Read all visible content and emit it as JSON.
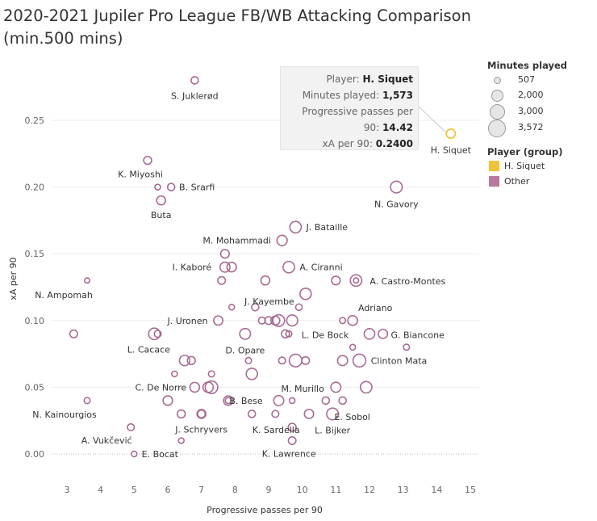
{
  "title_line1": "2020-2021 Jupiler Pro League FB/WB Attacking Comparison",
  "title_line2": "(min.500 mins)",
  "legend": {
    "size_title": "Minutes played",
    "sizes": [
      {
        "label": "507",
        "value": 507
      },
      {
        "label": "2,000",
        "value": 2000
      },
      {
        "label": "3,000",
        "value": 3000
      },
      {
        "label": "3,572",
        "value": 3572
      }
    ],
    "color_title": "Player (group)",
    "groups": [
      {
        "label": "H. Siquet",
        "color": "#f0c33a"
      },
      {
        "label": "Other",
        "color": "#b9799d"
      }
    ]
  },
  "tooltip": {
    "player_label": "Player:",
    "player_value": "H. Siquet",
    "minutes_label": "Minutes played:",
    "minutes_value": "1,573",
    "prog_label_1": "Progressive passes per",
    "prog_label_2": "90:",
    "prog_value": "14.42",
    "xa_label": "xA per 90:",
    "xa_value": "0.2400"
  },
  "colors": {
    "other": "#a86b94",
    "highlight": "#f0c33a",
    "grid": "#cccccc"
  },
  "chart_data": {
    "type": "scatter",
    "title": "2020-2021 Jupiler Pro League FB/WB Attacking Comparison (min.500 mins)",
    "xlabel": "Progressive passes per 90",
    "ylabel": "xA per 90",
    "xlim": [
      2.6,
      15.2
    ],
    "ylim": [
      -0.005,
      0.29
    ],
    "xticks": [
      3,
      4,
      5,
      6,
      7,
      8,
      9,
      10,
      11,
      12,
      13,
      14,
      15
    ],
    "yticks": [
      0.0,
      0.05,
      0.1,
      0.15,
      0.2,
      0.25
    ],
    "ytick_labels": [
      "0.00",
      "0.05",
      "0.10",
      "0.15",
      "0.20",
      "0.25"
    ],
    "points": [
      {
        "name": "H. Siquet",
        "x": 14.42,
        "y": 0.24,
        "minutes": 1573,
        "group": "H. Siquet",
        "label": "H. Siquet"
      },
      {
        "name": "S. Juklerød",
        "x": 6.8,
        "y": 0.28,
        "minutes": 1000,
        "group": "Other",
        "label": "S. Juklerød"
      },
      {
        "name": "K. Miyoshi",
        "x": 5.4,
        "y": 0.22,
        "minutes": 1200,
        "group": "Other",
        "label": "K. Miyoshi"
      },
      {
        "name": "B. Srarfi",
        "x": 6.1,
        "y": 0.2,
        "minutes": 1000,
        "group": "Other",
        "label": "B. Srarfi"
      },
      {
        "name": "",
        "x": 5.7,
        "y": 0.2,
        "minutes": 600,
        "group": "Other",
        "label": ""
      },
      {
        "name": "Buta",
        "x": 5.8,
        "y": 0.19,
        "minutes": 1500,
        "group": "Other",
        "label": "Buta"
      },
      {
        "name": "N. Gavory",
        "x": 12.8,
        "y": 0.2,
        "minutes": 2600,
        "group": "Other",
        "label": "N. Gavory"
      },
      {
        "name": "J. Bataille",
        "x": 9.8,
        "y": 0.17,
        "minutes": 2500,
        "group": "Other",
        "label": "J. Bataille"
      },
      {
        "name": "M. Mohammadi",
        "x": 9.4,
        "y": 0.16,
        "minutes": 2000,
        "group": "Other",
        "label": "M. Mohammadi"
      },
      {
        "name": "",
        "x": 7.7,
        "y": 0.15,
        "minutes": 1400,
        "group": "Other",
        "label": ""
      },
      {
        "name": "I. Kaboré",
        "x": 7.7,
        "y": 0.14,
        "minutes": 1900,
        "group": "Other",
        "label": "I. Kaboré"
      },
      {
        "name": "",
        "x": 7.9,
        "y": 0.14,
        "minutes": 1700,
        "group": "Other",
        "label": ""
      },
      {
        "name": "A. Ciranni",
        "x": 9.6,
        "y": 0.14,
        "minutes": 2500,
        "group": "Other",
        "label": "A. Ciranni"
      },
      {
        "name": "",
        "x": 7.6,
        "y": 0.13,
        "minutes": 1100,
        "group": "Other",
        "label": ""
      },
      {
        "name": "",
        "x": 8.9,
        "y": 0.13,
        "minutes": 1500,
        "group": "Other",
        "label": ""
      },
      {
        "name": "",
        "x": 11.0,
        "y": 0.13,
        "minutes": 1400,
        "group": "Other",
        "label": ""
      },
      {
        "name": "A. Castro-Montes",
        "x": 11.6,
        "y": 0.13,
        "minutes": 2500,
        "group": "Other",
        "label": "A. Castro-Montes"
      },
      {
        "name": "",
        "x": 11.6,
        "y": 0.13,
        "minutes": 500,
        "group": "Other",
        "label": ""
      },
      {
        "name": "N. Ampomah",
        "x": 3.6,
        "y": 0.13,
        "minutes": 507,
        "group": "Other",
        "label": "N. Ampomah"
      },
      {
        "name": "J. Kayembe",
        "x": 10.1,
        "y": 0.12,
        "minutes": 2400,
        "group": "Other",
        "label": "J. Kayembe"
      },
      {
        "name": "",
        "x": 7.9,
        "y": 0.11,
        "minutes": 600,
        "group": "Other",
        "label": ""
      },
      {
        "name": "",
        "x": 8.6,
        "y": 0.11,
        "minutes": 1000,
        "group": "Other",
        "label": ""
      },
      {
        "name": "",
        "x": 9.9,
        "y": 0.11,
        "minutes": 800,
        "group": "Other",
        "label": ""
      },
      {
        "name": "Adriano",
        "x": 11.5,
        "y": 0.1,
        "minutes": 1800,
        "group": "Other",
        "label": "Adriano"
      },
      {
        "name": "",
        "x": 11.2,
        "y": 0.1,
        "minutes": 700,
        "group": "Other",
        "label": ""
      },
      {
        "name": "J. Uronen",
        "x": 7.5,
        "y": 0.1,
        "minutes": 1600,
        "group": "Other",
        "label": "J. Uronen"
      },
      {
        "name": "",
        "x": 8.8,
        "y": 0.1,
        "minutes": 900,
        "group": "Other",
        "label": ""
      },
      {
        "name": "",
        "x": 9.0,
        "y": 0.1,
        "minutes": 1100,
        "group": "Other",
        "label": ""
      },
      {
        "name": "",
        "x": 9.2,
        "y": 0.1,
        "minutes": 1500,
        "group": "Other",
        "label": ""
      },
      {
        "name": "",
        "x": 9.3,
        "y": 0.1,
        "minutes": 2600,
        "group": "Other",
        "label": ""
      },
      {
        "name": "",
        "x": 9.7,
        "y": 0.1,
        "minutes": 2300,
        "group": "Other",
        "label": ""
      },
      {
        "name": "",
        "x": 9.5,
        "y": 0.09,
        "minutes": 1200,
        "group": "Other",
        "label": ""
      },
      {
        "name": "L. De Bock",
        "x": 9.6,
        "y": 0.09,
        "minutes": 700,
        "group": "Other",
        "label": "L. De Bock"
      },
      {
        "name": "G. Biancone",
        "x": 12.4,
        "y": 0.09,
        "minutes": 1600,
        "group": "Other",
        "label": "G. Biancone"
      },
      {
        "name": "",
        "x": 12.0,
        "y": 0.09,
        "minutes": 2100,
        "group": "Other",
        "label": ""
      },
      {
        "name": "",
        "x": 3.2,
        "y": 0.09,
        "minutes": 1100,
        "group": "Other",
        "label": ""
      },
      {
        "name": "L. Cacace",
        "x": 5.6,
        "y": 0.09,
        "minutes": 2500,
        "group": "Other",
        "label": "L. Cacace"
      },
      {
        "name": "",
        "x": 5.7,
        "y": 0.09,
        "minutes": 900,
        "group": "Other",
        "label": ""
      },
      {
        "name": "D. Opare",
        "x": 8.3,
        "y": 0.09,
        "minutes": 2200,
        "group": "Other",
        "label": "D. Opare"
      },
      {
        "name": "",
        "x": 11.5,
        "y": 0.08,
        "minutes": 600,
        "group": "Other",
        "label": ""
      },
      {
        "name": "",
        "x": 13.1,
        "y": 0.08,
        "minutes": 700,
        "group": "Other",
        "label": ""
      },
      {
        "name": "",
        "x": 6.5,
        "y": 0.07,
        "minutes": 2000,
        "group": "Other",
        "label": ""
      },
      {
        "name": "",
        "x": 6.7,
        "y": 0.07,
        "minutes": 1200,
        "group": "Other",
        "label": ""
      },
      {
        "name": "",
        "x": 8.4,
        "y": 0.07,
        "minutes": 700,
        "group": "Other",
        "label": ""
      },
      {
        "name": "",
        "x": 9.4,
        "y": 0.07,
        "minutes": 900,
        "group": "Other",
        "label": ""
      },
      {
        "name": "",
        "x": 9.8,
        "y": 0.07,
        "minutes": 3000,
        "group": "Other",
        "label": ""
      },
      {
        "name": "",
        "x": 10.1,
        "y": 0.07,
        "minutes": 1100,
        "group": "Other",
        "label": ""
      },
      {
        "name": "",
        "x": 11.2,
        "y": 0.07,
        "minutes": 1900,
        "group": "Other",
        "label": ""
      },
      {
        "name": "Clinton Mata",
        "x": 11.7,
        "y": 0.07,
        "minutes": 3100,
        "group": "Other",
        "label": "Clinton Mata"
      },
      {
        "name": "",
        "x": 6.2,
        "y": 0.06,
        "minutes": 600,
        "group": "Other",
        "label": ""
      },
      {
        "name": "",
        "x": 7.3,
        "y": 0.06,
        "minutes": 700,
        "group": "Other",
        "label": ""
      },
      {
        "name": "M. Murillo",
        "x": 8.5,
        "y": 0.06,
        "minutes": 2400,
        "group": "Other",
        "label": "M. Murillo"
      },
      {
        "name": "C. De Norre",
        "x": 6.8,
        "y": 0.05,
        "minutes": 1800,
        "group": "Other",
        "label": "C. De Norre"
      },
      {
        "name": "",
        "x": 7.2,
        "y": 0.05,
        "minutes": 2000,
        "group": "Other",
        "label": ""
      },
      {
        "name": "",
        "x": 7.3,
        "y": 0.05,
        "minutes": 3000,
        "group": "Other",
        "label": ""
      },
      {
        "name": "",
        "x": 11.0,
        "y": 0.05,
        "minutes": 1900,
        "group": "Other",
        "label": ""
      },
      {
        "name": "",
        "x": 11.9,
        "y": 0.05,
        "minutes": 2500,
        "group": "Other",
        "label": ""
      },
      {
        "name": "",
        "x": 6.0,
        "y": 0.04,
        "minutes": 1700,
        "group": "Other",
        "label": ""
      },
      {
        "name": "B. Bese",
        "x": 7.8,
        "y": 0.04,
        "minutes": 1700,
        "group": "Other",
        "label": "B. Bese"
      },
      {
        "name": "",
        "x": 7.8,
        "y": 0.04,
        "minutes": 700,
        "group": "Other",
        "label": ""
      },
      {
        "name": "",
        "x": 9.3,
        "y": 0.04,
        "minutes": 1900,
        "group": "Other",
        "label": ""
      },
      {
        "name": "",
        "x": 9.7,
        "y": 0.04,
        "minutes": 600,
        "group": "Other",
        "label": ""
      },
      {
        "name": "",
        "x": 10.7,
        "y": 0.04,
        "minutes": 1000,
        "group": "Other",
        "label": ""
      },
      {
        "name": "E. Sobol",
        "x": 11.2,
        "y": 0.04,
        "minutes": 1000,
        "group": "Other",
        "label": "E. Sobol"
      },
      {
        "name": "N. Kainourgios",
        "x": 3.6,
        "y": 0.04,
        "minutes": 700,
        "group": "Other",
        "label": "N. Kainourgios"
      },
      {
        "name": "",
        "x": 6.4,
        "y": 0.03,
        "minutes": 1200,
        "group": "Other",
        "label": ""
      },
      {
        "name": "J. Schryvers",
        "x": 7.0,
        "y": 0.03,
        "minutes": 1500,
        "group": "Other",
        "label": "J. Schryvers"
      },
      {
        "name": "",
        "x": 7.0,
        "y": 0.03,
        "minutes": 1100,
        "group": "Other",
        "label": ""
      },
      {
        "name": "",
        "x": 8.5,
        "y": 0.03,
        "minutes": 1000,
        "group": "Other",
        "label": ""
      },
      {
        "name": "",
        "x": 9.2,
        "y": 0.03,
        "minutes": 900,
        "group": "Other",
        "label": ""
      },
      {
        "name": "",
        "x": 10.2,
        "y": 0.03,
        "minutes": 1600,
        "group": "Other",
        "label": ""
      },
      {
        "name": "L. Bijker",
        "x": 10.9,
        "y": 0.03,
        "minutes": 2600,
        "group": "Other",
        "label": "L. Bijker"
      },
      {
        "name": "K. Sardella",
        "x": 9.7,
        "y": 0.02,
        "minutes": 1200,
        "group": "Other",
        "label": "K. Sardella"
      },
      {
        "name": "A. Vukčević",
        "x": 4.9,
        "y": 0.02,
        "minutes": 900,
        "group": "Other",
        "label": "A. Vukčević"
      },
      {
        "name": "",
        "x": 6.4,
        "y": 0.01,
        "minutes": 600,
        "group": "Other",
        "label": ""
      },
      {
        "name": "K. Lawrence",
        "x": 9.7,
        "y": 0.01,
        "minutes": 1100,
        "group": "Other",
        "label": "K. Lawrence"
      },
      {
        "name": "E. Bocat",
        "x": 5.0,
        "y": 0.0,
        "minutes": 600,
        "group": "Other",
        "label": "E. Bocat"
      }
    ]
  }
}
